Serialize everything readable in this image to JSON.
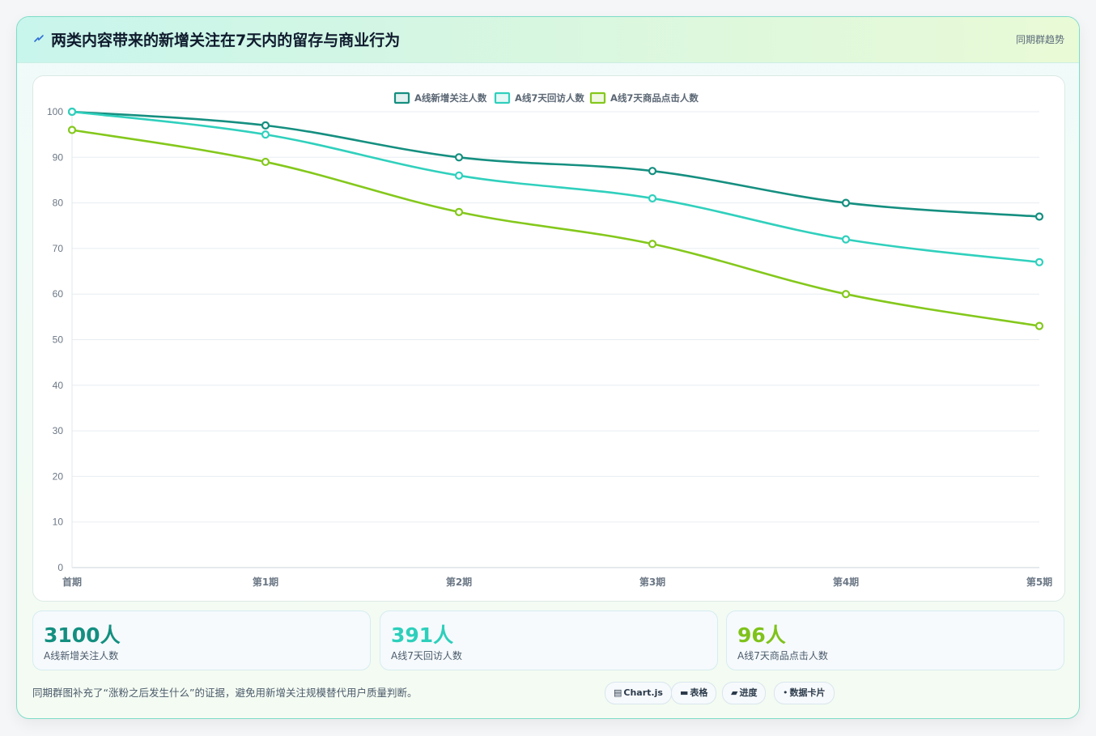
{
  "header": {
    "icon": "bolt-icon",
    "title": "两类内容带来的新增关注在7天内的留存与商业行为",
    "tag": "同期群趋势"
  },
  "chart_data": {
    "type": "line",
    "categories": [
      "首期",
      "第1期",
      "第2期",
      "第3期",
      "第4期",
      "第5期"
    ],
    "ylim": [
      0,
      100
    ],
    "yticks": [
      0,
      10,
      20,
      30,
      40,
      50,
      60,
      70,
      80,
      90,
      100
    ],
    "grid": true,
    "legend_position": "top-center",
    "series": [
      {
        "name": "A线新增关注人数",
        "color": "#158f80",
        "values": [
          100,
          97,
          90,
          87,
          80,
          77
        ]
      },
      {
        "name": "A线7天回访人数",
        "color": "#30d0bd",
        "values": [
          100,
          95,
          86,
          81,
          72,
          67
        ]
      },
      {
        "name": "A线7天商品点击人数",
        "color": "#84c81c",
        "values": [
          96,
          89,
          78,
          71,
          60,
          53
        ]
      }
    ]
  },
  "stats": [
    {
      "value": "3100人",
      "label": "A线新增关注人数",
      "color": "#138f80"
    },
    {
      "value": "391人",
      "label": "A线7天回访人数",
      "color": "#2dcfbb"
    },
    {
      "value": "96人",
      "label": "A线7天商品点击人数",
      "color": "#7fc21a"
    }
  ],
  "footnote": "同期群图补充了“涨粉之后发生什么”的证据，避免用新增关注规模替代用户质量判断。",
  "chips": [
    {
      "icon": "▤",
      "icon_name": "chart-icon",
      "label": "Chart.js"
    },
    {
      "icon": "▬",
      "icon_name": "table-icon",
      "label": "表格"
    },
    {
      "icon": "▰",
      "icon_name": "progress-icon",
      "label": "进度"
    },
    {
      "icon": "•",
      "icon_name": "card-icon",
      "label": "数据卡片"
    }
  ]
}
